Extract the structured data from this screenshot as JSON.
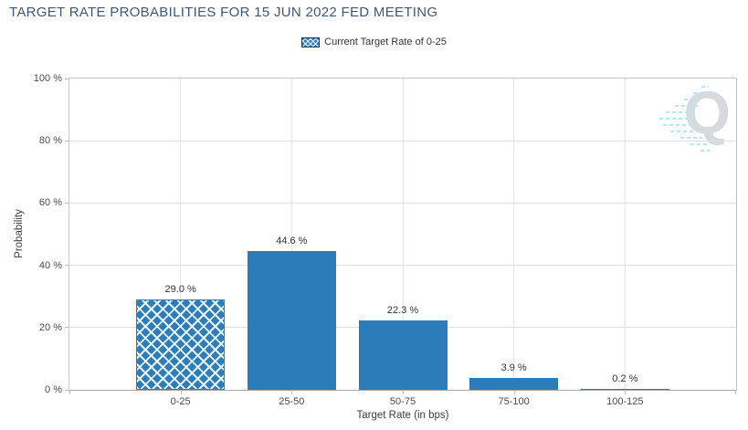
{
  "title": "TARGET RATE PROBABILITIES FOR 15 JUN 2022 FED MEETING",
  "legend": {
    "label": "Current Target Rate of 0-25"
  },
  "watermark": {
    "letter": "Q"
  },
  "chart_data": {
    "type": "bar",
    "title": "TARGET RATE PROBABILITIES FOR 15 JUN 2022 FED MEETING",
    "categories": [
      "0-25",
      "25-50",
      "50-75",
      "75-100",
      "100-125"
    ],
    "values": [
      29.0,
      44.6,
      22.3,
      3.9,
      0.2
    ],
    "value_labels": [
      "29.0 %",
      "44.6 %",
      "22.3 %",
      "3.9 %",
      "0.2 %"
    ],
    "xlabel": "Target Rate (in bps)",
    "ylabel": "Probability",
    "ylim": [
      0,
      100
    ],
    "ytick_values": [
      0,
      20,
      40,
      60,
      80,
      100
    ],
    "ytick_labels": [
      "0 %",
      "20 %",
      "40 %",
      "60 %",
      "80 %",
      "100 %"
    ],
    "legend": [
      "Current Target Rate of 0-25"
    ],
    "legend_position": "top-center",
    "grid": true,
    "bar_styles": [
      "crosshatch",
      "solid",
      "solid",
      "solid",
      "solid"
    ],
    "highlighted_category": "0-25",
    "colors": {
      "bar": "#2b7cb9",
      "title": "#3d5873",
      "axis_text": "#4a4a4a",
      "label_text": "#333333",
      "gridline": "#e0e0e0",
      "watermark_q": "#d6dade",
      "watermark_dashes": "#b9e7f0"
    }
  }
}
